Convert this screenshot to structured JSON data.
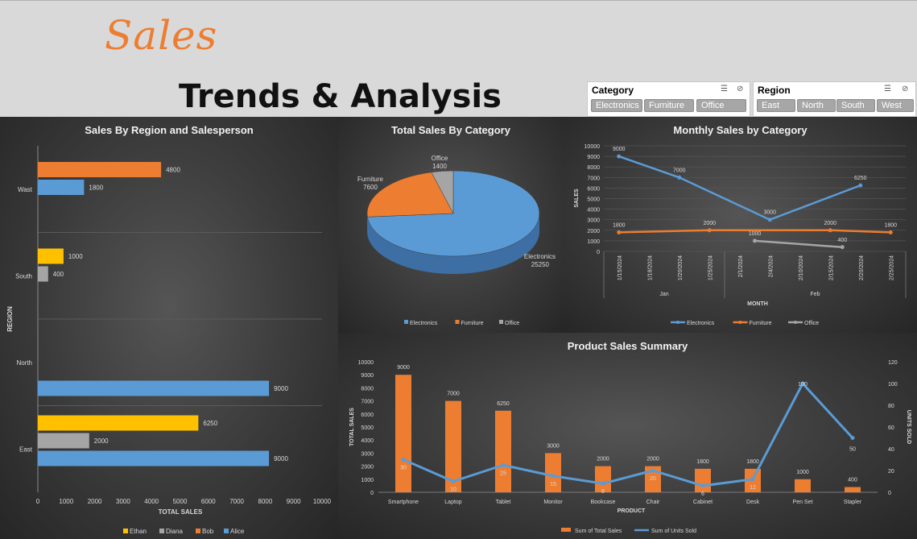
{
  "header": {
    "logo_text": "Sales",
    "subtitle": "Trends & Analysis"
  },
  "slicers": [
    {
      "title": "Category",
      "items": [
        "Electronics",
        "Furniture",
        "Office"
      ]
    },
    {
      "title": "Region",
      "items": [
        "East",
        "North",
        "South",
        "West"
      ]
    }
  ],
  "colors": {
    "blue": "#5b9bd5",
    "orange": "#ed7d31",
    "gray": "#a5a5a5",
    "yellow": "#ffc000"
  },
  "chart_data": [
    {
      "type": "bar",
      "orientation": "horizontal",
      "title": "Sales By Region and Salesperson",
      "xlabel": "TOTAL SALES",
      "ylabel": "REGION",
      "xlim": [
        0,
        10000
      ],
      "xticks": [
        "0",
        "1000",
        "2000",
        "3000",
        "4000",
        "5000",
        "6000",
        "7000",
        "8000",
        "9000",
        "10000"
      ],
      "groups": [
        {
          "region": "Wast",
          "bars": [
            {
              "name": "Bob",
              "value": 4800
            },
            {
              "name": "Alice",
              "value": 1800
            }
          ]
        },
        {
          "region": "South",
          "bars": [
            {
              "name": "Ethan",
              "value": 1000
            },
            {
              "name": "Diana",
              "value": 400
            }
          ]
        },
        {
          "region": "North",
          "bars": [
            {
              "name": "Alice",
              "value": 9000
            }
          ]
        },
        {
          "region": "East",
          "bars": [
            {
              "name": "Ethan",
              "value": 6250
            },
            {
              "name": "Diana",
              "value": 2000
            },
            {
              "name": "Alice",
              "value": 9000
            }
          ]
        }
      ],
      "legend": [
        "Ethan",
        "Diana",
        "Bob",
        "Alice"
      ],
      "legend_position": "bottom"
    },
    {
      "type": "pie",
      "title": "Total Sales By Category",
      "slices": [
        {
          "label": "Electronics",
          "value": 25250
        },
        {
          "label": "Furniture",
          "value": 7600
        },
        {
          "label": "Office",
          "value": 1400
        }
      ],
      "legend": [
        "Electronics",
        "Furniture",
        "Office"
      ],
      "legend_position": "bottom"
    },
    {
      "type": "line",
      "title": "Monthly Sales by Category",
      "xlabel": "MONTH",
      "ylabel": "SALES",
      "ylim": [
        0,
        10000
      ],
      "yticks": [
        "0",
        "1000",
        "2000",
        "3000",
        "4000",
        "5000",
        "6000",
        "7000",
        "8000",
        "9000",
        "10000"
      ],
      "x": [
        "1/15/2024",
        "1/18/2024",
        "1/20/2024",
        "1/25/2024",
        "2/1/2024",
        "2/4/2024",
        "2/10/2024",
        "2/15/2024",
        "2/20/2024",
        "2/25/2024"
      ],
      "months": [
        {
          "label": "Jan",
          "span": [
            0,
            3
          ]
        },
        {
          "label": "Feb",
          "span": [
            4,
            9
          ]
        }
      ],
      "series": [
        {
          "name": "Electronics",
          "points": [
            [
              0,
              9000
            ],
            [
              2,
              7000
            ],
            [
              5,
              3000
            ],
            [
              8,
              6250
            ]
          ],
          "labels": [
            "9000",
            "7000",
            "3000",
            "6250"
          ]
        },
        {
          "name": "Furniture",
          "points": [
            [
              0,
              1800
            ],
            [
              3,
              2000
            ],
            [
              7,
              2000
            ],
            [
              9,
              1800
            ]
          ],
          "labels": [
            "1800",
            "2000",
            "2000",
            "1800"
          ]
        },
        {
          "name": "Office",
          "points": [
            [
              4.5,
              1000
            ],
            [
              7.4,
              400
            ]
          ],
          "labels": [
            "1000",
            "400"
          ]
        }
      ],
      "legend_position": "bottom"
    },
    {
      "type": "bar",
      "title": "Product Sales Summary",
      "xlabel": "PRODUCT",
      "ylabel": "TOTAL SALES",
      "y2label": "UNITS SOLD",
      "ylim": [
        0,
        10000
      ],
      "y2lim": [
        0,
        120
      ],
      "yticks": [
        "0",
        "1000",
        "2000",
        "3000",
        "4000",
        "5000",
        "6000",
        "7000",
        "8000",
        "9000",
        "10000"
      ],
      "y2ticks": [
        "0",
        "20",
        "40",
        "60",
        "80",
        "100",
        "120"
      ],
      "categories": [
        "Smartphone",
        "Laptop",
        "Tablet",
        "Monitor",
        "Bookcase",
        "Chair",
        "Cabinet",
        "Desk",
        "Pen Set",
        "Stapler"
      ],
      "series": [
        {
          "name": "Sum of Total Sales",
          "type": "bar",
          "values": [
            9000,
            7000,
            6250,
            3000,
            2000,
            2000,
            1800,
            1800,
            1000,
            400
          ]
        },
        {
          "name": "Sum of Units Sold",
          "type": "line",
          "axis": "right",
          "values": [
            30,
            10,
            25,
            15,
            8,
            20,
            6,
            12,
            100,
            50
          ]
        }
      ],
      "legend_position": "bottom"
    }
  ]
}
